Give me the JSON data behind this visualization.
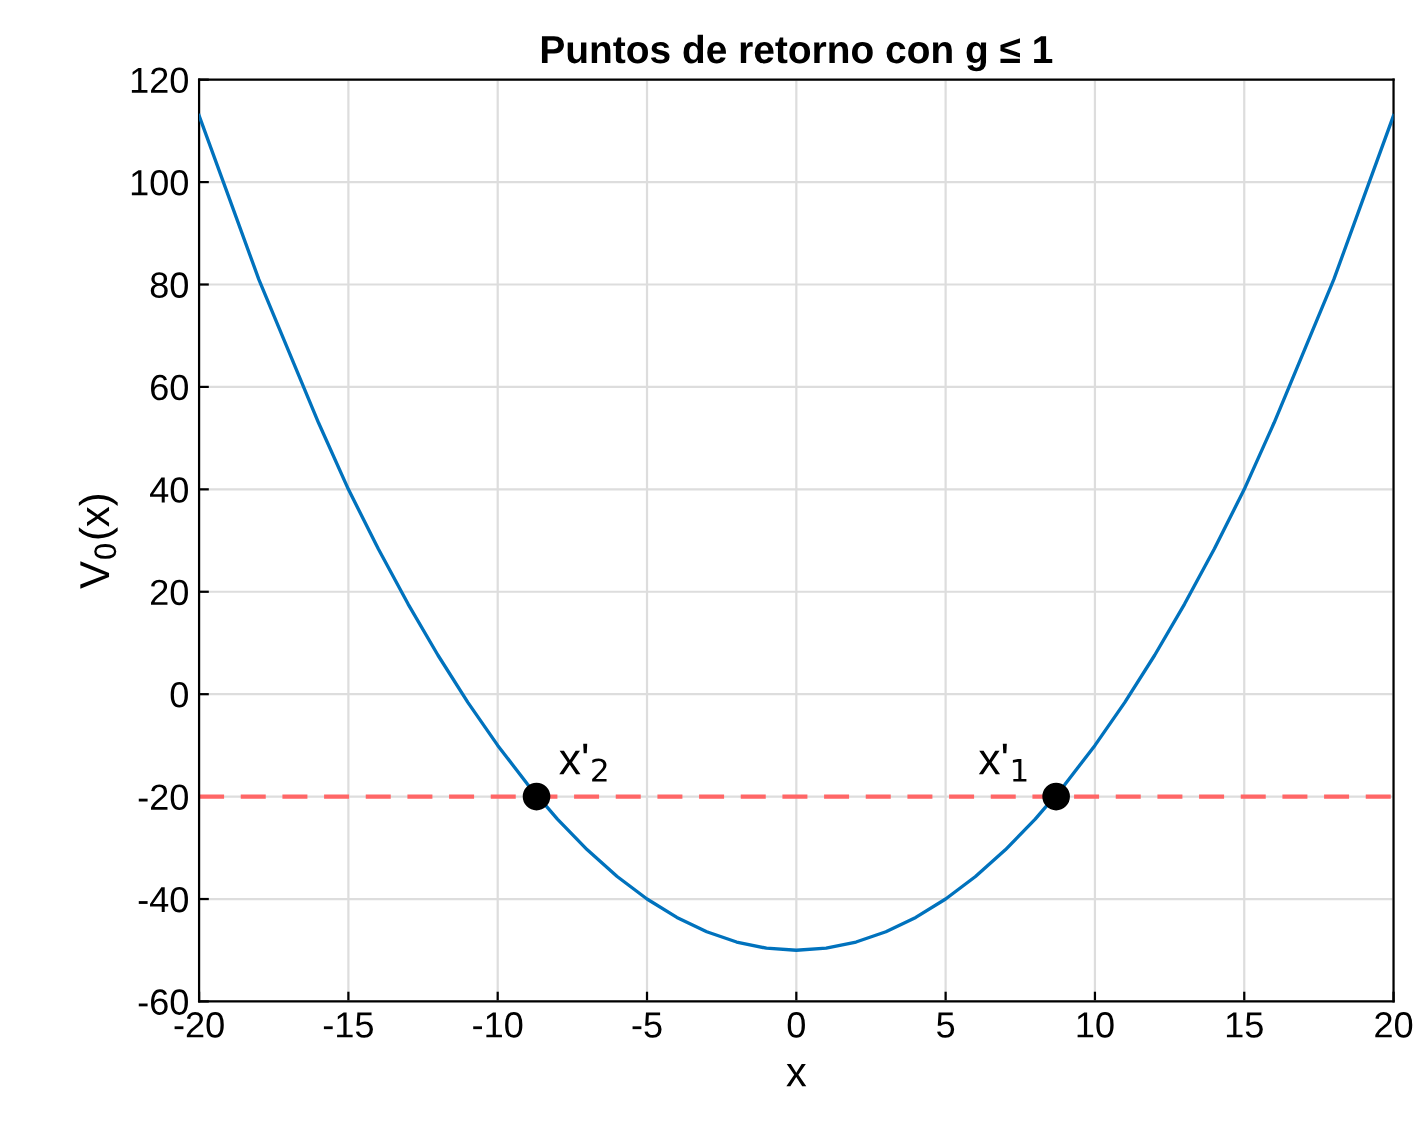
{
  "chart_data": {
    "type": "line",
    "title": "Puntos de retorno con g ≤ 1",
    "xlabel": "x",
    "ylabel": "V$_{0}$(x)",
    "series": [
      {
        "color": "#0072bd",
        "marker": "none",
        "x": [
          -20,
          -19,
          -18,
          -17,
          -16,
          -15,
          -14,
          -13,
          -12,
          -11,
          -10,
          -9,
          -8,
          -7,
          -6,
          -5,
          -4,
          -3,
          -2,
          -1,
          0,
          1,
          2,
          3,
          4,
          5,
          6,
          7,
          8,
          9,
          10,
          11,
          12,
          13,
          14,
          15,
          16,
          17,
          18,
          19,
          20
        ],
        "values": [
          113,
          97,
          81,
          67,
          53,
          40,
          28.4,
          17.6,
          7.6,
          -1.6,
          -10,
          -17.6,
          -24.4,
          -30.4,
          -35.6,
          -40,
          -43.6,
          -46.4,
          -48.4,
          -49.6,
          -50,
          -49.6,
          -48.4,
          -46.4,
          -43.6,
          -40,
          -35.6,
          -30.4,
          -24.4,
          -17.6,
          -10,
          -1.6,
          7.6,
          17.6,
          28.4,
          40,
          53,
          67,
          81,
          97,
          113
        ]
      },
      {
        "type": "scatter",
        "color": "#000000",
        "marker": "circle",
        "x": [
          8.7,
          -8.7
        ],
        "values": [
          -20,
          -20
        ]
      }
    ],
    "annotations": [
      {
        "text": "x'$_{1}$",
        "x": 8.7,
        "y": -20
      },
      {
        "text": "x'$_{2}$",
        "x": -8.7,
        "y": -20
      }
    ],
    "ref_lines": [
      {
        "axis": "y",
        "value": -20,
        "color": "#ff6666",
        "line_style": "dashed"
      }
    ],
    "xlim": [
      -20,
      20
    ],
    "ylim": [
      -60,
      120
    ],
    "xticks": [
      -20,
      -15,
      -10,
      -5,
      0,
      5,
      10,
      15,
      20
    ],
    "yticks": [
      -60,
      -40,
      -20,
      0,
      20,
      40,
      60,
      80,
      100,
      120
    ],
    "grid": true
  }
}
